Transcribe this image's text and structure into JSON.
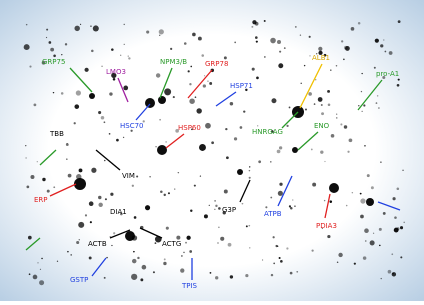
{
  "labels": [
    "GRP75",
    "LMO3",
    "NPM3/B",
    "GRP78",
    "HSP71",
    "ALB1",
    "pro-A1",
    "HSC70",
    "HSP60",
    "HNRGAG",
    "ENO",
    "TBB",
    "VIM",
    "ERP",
    "G3P",
    "ATPB",
    "PDIA3",
    "ACTB",
    "ACTG",
    "DIA1",
    "GSTP",
    "TPIS"
  ]
}
